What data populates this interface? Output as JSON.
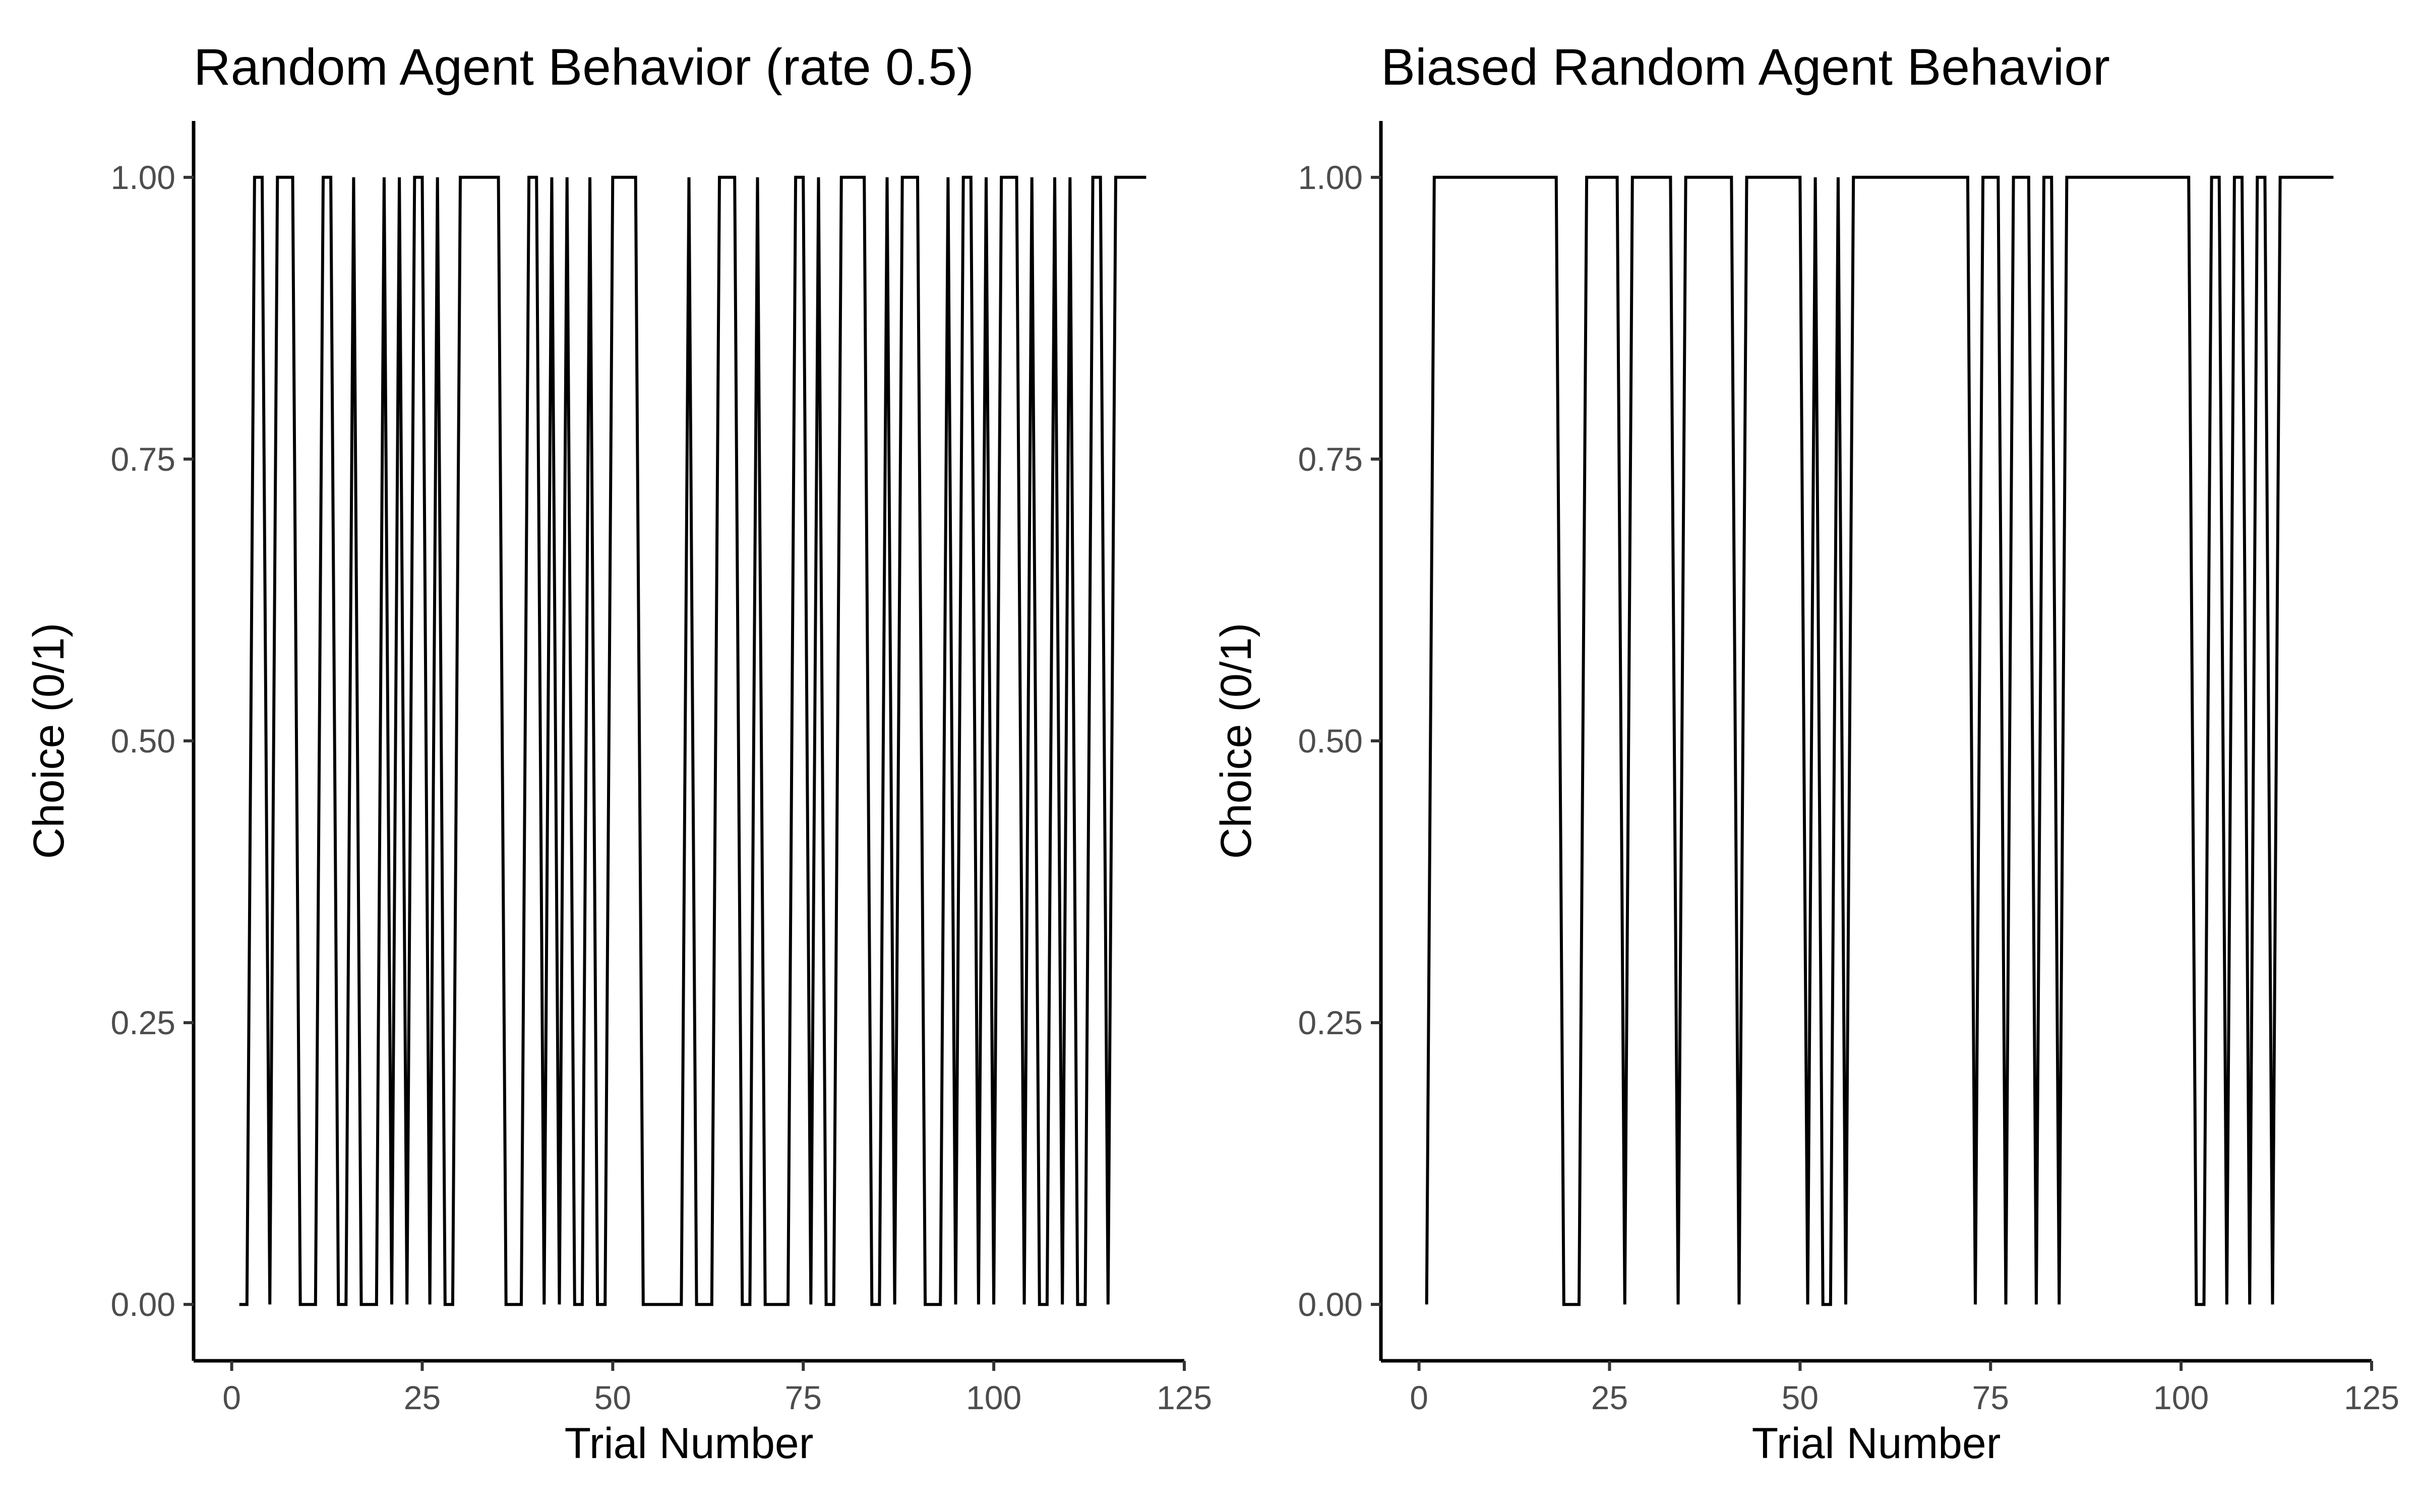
{
  "chart_data": [
    {
      "type": "line",
      "title": "Random Agent Behavior (rate 0.5)",
      "xlabel": "Trial Number",
      "ylabel": "Choice (0/1)",
      "xlim": [
        -5,
        125
      ],
      "ylim": [
        -0.05,
        1.05
      ],
      "xticks": [
        0,
        25,
        50,
        75,
        100,
        125
      ],
      "xtick_labels": [
        "0",
        "25",
        "50",
        "75",
        "100",
        "125"
      ],
      "yticks": [
        0,
        0.25,
        0.5,
        0.75,
        1
      ],
      "ytick_labels": [
        "0.00",
        "0.25",
        "0.50",
        "0.75",
        "1.00"
      ],
      "grid": false,
      "series": [
        {
          "color": "#000000",
          "x": [
            1,
            2,
            3,
            4,
            5,
            6,
            7,
            8,
            9,
            10,
            11,
            12,
            13,
            14,
            15,
            16,
            17,
            18,
            19,
            20,
            21,
            22,
            23,
            24,
            25,
            26,
            27,
            28,
            29,
            30,
            31,
            32,
            33,
            34,
            35,
            36,
            37,
            38,
            39,
            40,
            41,
            42,
            43,
            44,
            45,
            46,
            47,
            48,
            49,
            50,
            51,
            52,
            53,
            54,
            55,
            56,
            57,
            58,
            59,
            60,
            61,
            62,
            63,
            64,
            65,
            66,
            67,
            68,
            69,
            70,
            71,
            72,
            73,
            74,
            75,
            76,
            77,
            78,
            79,
            80,
            81,
            82,
            83,
            84,
            85,
            86,
            87,
            88,
            89,
            90,
            91,
            92,
            93,
            94,
            95,
            96,
            97,
            98,
            99,
            100,
            101,
            102,
            103,
            104,
            105,
            106,
            107,
            108,
            109,
            110,
            111,
            112,
            113,
            114,
            115,
            116,
            117,
            118,
            119,
            120
          ],
          "y": [
            0,
            0,
            1,
            1,
            0,
            1,
            1,
            1,
            0,
            0,
            0,
            1,
            1,
            0,
            0,
            1,
            0,
            0,
            0,
            1,
            0,
            1,
            0,
            1,
            1,
            0,
            1,
            0,
            0,
            1,
            1,
            1,
            1,
            1,
            1,
            0,
            0,
            0,
            1,
            1,
            0,
            1,
            0,
            1,
            0,
            0,
            1,
            0,
            0,
            1,
            1,
            1,
            1,
            0,
            0,
            0,
            0,
            0,
            0,
            1,
            0,
            0,
            0,
            1,
            1,
            1,
            0,
            0,
            1,
            0,
            0,
            0,
            0,
            1,
            1,
            0,
            1,
            0,
            0,
            1,
            1,
            1,
            1,
            0,
            0,
            1,
            0,
            1,
            1,
            1,
            0,
            0,
            0,
            1,
            0,
            1,
            1,
            0,
            1,
            0,
            1,
            1,
            1,
            0,
            1,
            0,
            0,
            1,
            0,
            1,
            0,
            0,
            1,
            1,
            0,
            1,
            1,
            1,
            1,
            1
          ]
        }
      ]
    },
    {
      "type": "line",
      "title": "Biased Random Agent Behavior",
      "xlabel": "Trial Number",
      "ylabel": "Choice (0/1)",
      "xlim": [
        -5,
        125
      ],
      "ylim": [
        -0.05,
        1.05
      ],
      "xticks": [
        0,
        25,
        50,
        75,
        100,
        125
      ],
      "xtick_labels": [
        "0",
        "25",
        "50",
        "75",
        "100",
        "125"
      ],
      "yticks": [
        0,
        0.25,
        0.5,
        0.75,
        1
      ],
      "ytick_labels": [
        "0.00",
        "0.25",
        "0.50",
        "0.75",
        "1.00"
      ],
      "grid": false,
      "series": [
        {
          "color": "#000000",
          "x": [
            1,
            2,
            3,
            4,
            5,
            6,
            7,
            8,
            9,
            10,
            11,
            12,
            13,
            14,
            15,
            16,
            17,
            18,
            19,
            20,
            21,
            22,
            23,
            24,
            25,
            26,
            27,
            28,
            29,
            30,
            31,
            32,
            33,
            34,
            35,
            36,
            37,
            38,
            39,
            40,
            41,
            42,
            43,
            44,
            45,
            46,
            47,
            48,
            49,
            50,
            51,
            52,
            53,
            54,
            55,
            56,
            57,
            58,
            59,
            60,
            61,
            62,
            63,
            64,
            65,
            66,
            67,
            68,
            69,
            70,
            71,
            72,
            73,
            74,
            75,
            76,
            77,
            78,
            79,
            80,
            81,
            82,
            83,
            84,
            85,
            86,
            87,
            88,
            89,
            90,
            91,
            92,
            93,
            94,
            95,
            96,
            97,
            98,
            99,
            100,
            101,
            102,
            103,
            104,
            105,
            106,
            107,
            108,
            109,
            110,
            111,
            112,
            113,
            114,
            115,
            116,
            117,
            118,
            119,
            120
          ],
          "y": [
            0,
            1,
            1,
            1,
            1,
            1,
            1,
            1,
            1,
            1,
            1,
            1,
            1,
            1,
            1,
            1,
            1,
            1,
            0,
            0,
            0,
            1,
            1,
            1,
            1,
            1,
            0,
            1,
            1,
            1,
            1,
            1,
            1,
            0,
            1,
            1,
            1,
            1,
            1,
            1,
            1,
            0,
            1,
            1,
            1,
            1,
            1,
            1,
            1,
            1,
            0,
            1,
            0,
            0,
            1,
            0,
            1,
            1,
            1,
            1,
            1,
            1,
            1,
            1,
            1,
            1,
            1,
            1,
            1,
            1,
            1,
            1,
            0,
            1,
            1,
            1,
            0,
            1,
            1,
            1,
            0,
            1,
            1,
            0,
            1,
            1,
            1,
            1,
            1,
            1,
            1,
            1,
            1,
            1,
            1,
            1,
            1,
            1,
            1,
            1,
            1,
            0,
            0,
            1,
            1,
            0,
            1,
            1,
            0,
            1,
            1,
            0,
            1,
            1,
            1,
            1,
            1,
            1,
            1,
            1
          ]
        }
      ]
    }
  ]
}
